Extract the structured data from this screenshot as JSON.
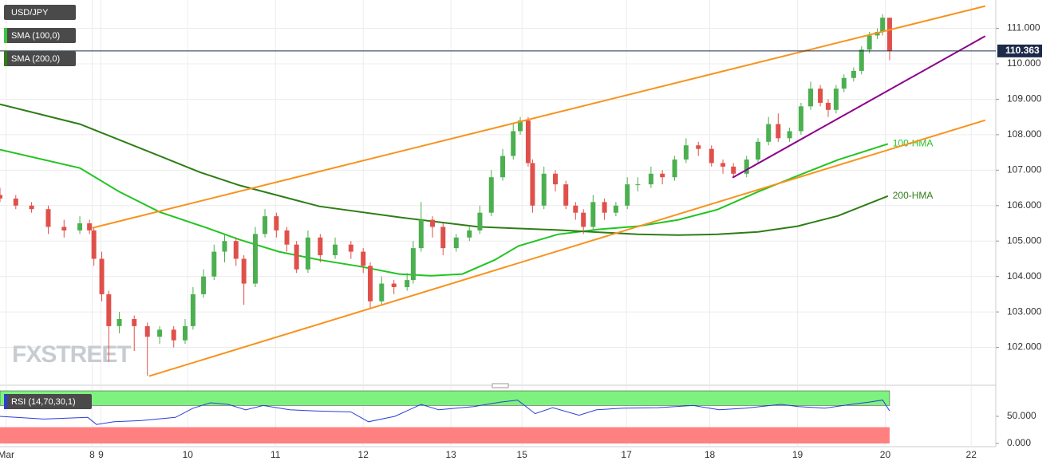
{
  "chart_data": {
    "type": "candlestick",
    "legend": [
      {
        "name": "USD/JPY",
        "color": null
      },
      {
        "name": "SMA (100,0)",
        "color": "#3cc43c"
      },
      {
        "name": "SMA (200,0)",
        "color": "#2e7d16"
      }
    ],
    "watermark": "FXSTREET",
    "xlim": [
      0,
      11.35
    ],
    "xticks": [
      {
        "value": 0.07,
        "label": "Mar"
      },
      {
        "value": 1.05,
        "label": "8"
      },
      {
        "value": 1.15,
        "label": "9"
      },
      {
        "value": 2.14,
        "label": "10"
      },
      {
        "value": 3.14,
        "label": "11"
      },
      {
        "value": 4.14,
        "label": "12"
      },
      {
        "value": 5.14,
        "label": "13"
      },
      {
        "value": 5.95,
        "label": "15"
      },
      {
        "value": 7.14,
        "label": "17"
      },
      {
        "value": 8.09,
        "label": "18"
      },
      {
        "value": 9.09,
        "label": "19"
      },
      {
        "value": 10.09,
        "label": "20"
      },
      {
        "value": 11.07,
        "label": "22"
      }
    ],
    "ylim": [
      101.0,
      111.8
    ],
    "yticks": [
      {
        "value": 102,
        "label": "102.000"
      },
      {
        "value": 103,
        "label": "103.000"
      },
      {
        "value": 104,
        "label": "104.000"
      },
      {
        "value": 105,
        "label": "105.000"
      },
      {
        "value": 106,
        "label": "106.000"
      },
      {
        "value": 107,
        "label": "107.000"
      },
      {
        "value": 108,
        "label": "108.000"
      },
      {
        "value": 109,
        "label": "109.000"
      },
      {
        "value": 110,
        "label": "110.000"
      },
      {
        "value": 111,
        "label": "111.000"
      }
    ],
    "grid": true,
    "up_color": "#4caf50",
    "down_color": "#e0504a",
    "x": [
      0,
      0.18,
      0.36,
      0.55,
      0.73,
      0.91,
      1.02,
      1.07,
      1.16,
      1.24,
      1.36,
      1.53,
      1.68,
      1.82,
      1.98,
      2.11,
      2.2,
      2.32,
      2.44,
      2.56,
      2.69,
      2.78,
      2.91,
      3.02,
      3.15,
      3.27,
      3.38,
      3.51,
      3.65,
      3.82,
      4.0,
      4.14,
      4.22,
      4.35,
      4.49,
      4.64,
      4.71,
      4.8,
      4.93,
      5.05,
      5.2,
      5.35,
      5.47,
      5.6,
      5.73,
      5.85,
      5.93,
      6.02,
      6.07,
      6.2,
      6.33,
      6.45,
      6.56,
      6.65,
      6.76,
      6.89,
      7.02,
      7.15,
      7.27,
      7.42,
      7.55,
      7.69,
      7.82,
      7.96,
      8.11,
      8.24,
      8.36,
      8.51,
      8.64,
      8.76,
      8.87,
      9.0,
      9.13,
      9.24,
      9.35,
      9.44,
      9.53,
      9.62,
      9.73,
      9.82,
      9.91,
      10.0,
      10.06,
      10.14
    ],
    "ohlc": [
      [
        106.3,
        106.5,
        106.1,
        106.2
      ],
      [
        106.2,
        106.3,
        105.9,
        106.0
      ],
      [
        106.0,
        106.1,
        105.8,
        105.9
      ],
      [
        105.9,
        106.0,
        105.2,
        105.4
      ],
      [
        105.4,
        105.6,
        105.1,
        105.3
      ],
      [
        105.3,
        105.7,
        105.2,
        105.5
      ],
      [
        105.5,
        105.6,
        105.2,
        105.3
      ],
      [
        105.3,
        105.4,
        104.3,
        104.5
      ],
      [
        104.5,
        104.7,
        103.3,
        103.5
      ],
      [
        103.5,
        103.6,
        101.6,
        102.6
      ],
      [
        102.6,
        103.0,
        102.4,
        102.8
      ],
      [
        102.8,
        102.9,
        101.9,
        102.6
      ],
      [
        102.6,
        102.7,
        101.2,
        102.3
      ],
      [
        102.3,
        102.6,
        102.1,
        102.5
      ],
      [
        102.5,
        102.6,
        102.0,
        102.2
      ],
      [
        102.2,
        102.8,
        102.1,
        102.6
      ],
      [
        102.6,
        103.7,
        102.5,
        103.5
      ],
      [
        103.5,
        104.2,
        103.4,
        104.0
      ],
      [
        104.0,
        104.9,
        103.9,
        104.7
      ],
      [
        104.7,
        105.2,
        104.4,
        105.0
      ],
      [
        105.0,
        105.1,
        104.3,
        104.5
      ],
      [
        104.5,
        104.6,
        103.2,
        103.8
      ],
      [
        103.8,
        105.4,
        103.7,
        105.2
      ],
      [
        105.2,
        105.9,
        105.1,
        105.7
      ],
      [
        105.7,
        105.8,
        105.1,
        105.3
      ],
      [
        105.3,
        105.4,
        104.7,
        104.9
      ],
      [
        104.9,
        105.0,
        104.1,
        104.2
      ],
      [
        104.2,
        105.3,
        104.1,
        105.1
      ],
      [
        105.1,
        105.2,
        104.4,
        104.6
      ],
      [
        104.6,
        105.1,
        104.5,
        104.9
      ],
      [
        104.9,
        105.0,
        104.5,
        104.7
      ],
      [
        104.7,
        104.8,
        104.1,
        104.3
      ],
      [
        104.3,
        104.4,
        103.1,
        103.3
      ],
      [
        103.3,
        104.0,
        103.2,
        103.8
      ],
      [
        103.8,
        103.9,
        103.5,
        103.7
      ],
      [
        103.7,
        104.1,
        103.6,
        103.9
      ],
      [
        103.9,
        105.0,
        103.8,
        104.8
      ],
      [
        104.8,
        106.1,
        104.7,
        105.6
      ],
      [
        105.6,
        105.7,
        105.1,
        105.4
      ],
      [
        105.4,
        105.5,
        104.6,
        104.8
      ],
      [
        104.8,
        105.2,
        104.7,
        105.1
      ],
      [
        105.1,
        105.4,
        105.0,
        105.3
      ],
      [
        105.3,
        106.0,
        105.2,
        105.8
      ],
      [
        105.8,
        107.0,
        105.7,
        106.8
      ],
      [
        106.8,
        107.6,
        106.7,
        107.4
      ],
      [
        107.4,
        108.3,
        107.3,
        108.1
      ],
      [
        108.1,
        108.5,
        108.0,
        108.4
      ],
      [
        108.4,
        108.5,
        107.1,
        107.2
      ],
      [
        107.2,
        107.3,
        105.8,
        106.0
      ],
      [
        106.0,
        107.1,
        105.9,
        106.9
      ],
      [
        106.9,
        107.0,
        106.4,
        106.6
      ],
      [
        106.6,
        106.7,
        105.9,
        106.0
      ],
      [
        106.0,
        106.1,
        105.6,
        105.8
      ],
      [
        105.8,
        105.9,
        105.2,
        105.4
      ],
      [
        105.4,
        106.3,
        105.3,
        106.1
      ],
      [
        106.1,
        106.2,
        105.6,
        105.8
      ],
      [
        105.8,
        106.1,
        105.7,
        106.0
      ],
      [
        106.0,
        106.8,
        105.9,
        106.6
      ],
      [
        106.6,
        106.8,
        106.4,
        106.6
      ],
      [
        106.6,
        107.1,
        106.5,
        106.9
      ],
      [
        106.9,
        107.0,
        106.6,
        106.8
      ],
      [
        106.8,
        107.4,
        106.7,
        107.3
      ],
      [
        107.3,
        107.9,
        107.2,
        107.7
      ],
      [
        107.7,
        107.8,
        107.4,
        107.6
      ],
      [
        107.6,
        107.7,
        107.1,
        107.2
      ],
      [
        107.2,
        107.3,
        106.9,
        107.1
      ],
      [
        107.1,
        107.2,
        106.8,
        106.9
      ],
      [
        106.9,
        107.4,
        106.8,
        107.3
      ],
      [
        107.3,
        107.9,
        107.2,
        107.8
      ],
      [
        107.8,
        108.5,
        107.7,
        108.3
      ],
      [
        108.3,
        108.6,
        107.8,
        107.9
      ],
      [
        107.9,
        108.2,
        107.8,
        108.1
      ],
      [
        108.1,
        108.9,
        108.0,
        108.8
      ],
      [
        108.8,
        109.5,
        108.7,
        109.3
      ],
      [
        109.3,
        109.4,
        108.8,
        108.9
      ],
      [
        108.9,
        109.0,
        108.5,
        108.7
      ],
      [
        108.7,
        109.4,
        108.6,
        109.3
      ],
      [
        109.3,
        109.7,
        109.2,
        109.6
      ],
      [
        109.6,
        109.9,
        109.5,
        109.8
      ],
      [
        109.8,
        110.5,
        109.7,
        110.4
      ],
      [
        110.4,
        110.9,
        110.3,
        110.8
      ],
      [
        110.8,
        111.0,
        110.7,
        110.9
      ],
      [
        110.9,
        111.4,
        110.8,
        111.3
      ],
      [
        111.3,
        111.3,
        110.1,
        110.363
      ]
    ],
    "last_price": 110.363,
    "last_price_color": "#1c2a4a",
    "series": [
      {
        "name": "100-HMA",
        "color": "#22c422",
        "x": [
          0,
          0.91,
          1.36,
          1.82,
          2.36,
          2.73,
          3.18,
          3.64,
          4.09,
          4.55,
          4.91,
          5.27,
          5.64,
          5.91,
          6.36,
          6.82,
          7.27,
          7.73,
          8.18,
          8.64,
          9.09,
          9.55,
          10.12
        ],
        "values": [
          107.58,
          107.06,
          106.39,
          105.82,
          105.37,
          105.04,
          104.7,
          104.47,
          104.29,
          104.07,
          104.02,
          104.07,
          104.47,
          104.86,
          105.19,
          105.33,
          105.42,
          105.6,
          105.89,
          106.39,
          106.84,
          107.29,
          107.74
        ]
      },
      {
        "name": "200-HMA",
        "color": "#2e7d16",
        "x": [
          0,
          0.91,
          1.82,
          2.27,
          2.73,
          3.64,
          4.55,
          5.45,
          6.36,
          7.27,
          7.73,
          8.18,
          8.64,
          9.09,
          9.55,
          10.12
        ],
        "values": [
          108.86,
          108.3,
          107.4,
          106.95,
          106.57,
          105.98,
          105.67,
          105.4,
          105.31,
          105.19,
          105.17,
          105.19,
          105.26,
          105.42,
          105.71,
          106.27
        ]
      }
    ],
    "trendlines": [
      {
        "color": "#f7931e",
        "x": [
          1.05,
          11.23
        ],
        "values": [
          105.37,
          111.63
        ]
      },
      {
        "color": "#f7931e",
        "x": [
          1.7,
          11.23
        ],
        "values": [
          101.19,
          108.41
        ]
      },
      {
        "color": "#8b008b",
        "x": [
          8.35,
          11.23
        ],
        "values": [
          106.79,
          110.78
        ]
      }
    ],
    "rsi": {
      "name": "RSI (14,70,30,1)",
      "color": "#2a3fd6",
      "ylim": [
        0,
        97
      ],
      "overbought": 70,
      "oversold": 30,
      "overbought_color": "#7ef27e",
      "oversold_color": "#ff8080",
      "yticks": [
        {
          "value": 0,
          "label": "0.000"
        },
        {
          "value": 50,
          "label": "50.000"
        }
      ],
      "x": [
        0,
        0.5,
        1.0,
        1.1,
        1.3,
        1.6,
        2.0,
        2.2,
        2.4,
        2.6,
        2.8,
        3.0,
        3.3,
        3.6,
        4.0,
        4.2,
        4.5,
        4.8,
        5.0,
        5.4,
        5.7,
        5.9,
        6.1,
        6.3,
        6.6,
        6.8,
        7.1,
        7.5,
        7.9,
        8.2,
        8.5,
        8.9,
        9.1,
        9.4,
        9.7,
        9.9,
        10.06,
        10.14
      ],
      "values": [
        50,
        45,
        48,
        35,
        40,
        42,
        48,
        65,
        75,
        72,
        62,
        70,
        62,
        60,
        58,
        40,
        50,
        72,
        62,
        68,
        76,
        80,
        55,
        66,
        52,
        62,
        65,
        66,
        70,
        62,
        65,
        72,
        68,
        65,
        72,
        76,
        80,
        60
      ]
    }
  }
}
